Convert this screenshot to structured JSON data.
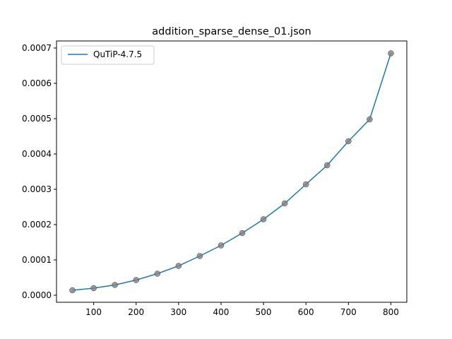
{
  "chart_data": {
    "type": "line",
    "title": "addition_sparse_dense_01.json",
    "xlabel": "",
    "ylabel": "",
    "x": [
      50,
      100,
      150,
      200,
      250,
      300,
      350,
      400,
      450,
      500,
      550,
      600,
      650,
      700,
      750,
      800
    ],
    "series": [
      {
        "name": "QuTiP-4.7.5",
        "color": "#1f77b4",
        "marker_color": "#808080",
        "values": [
          1.4e-05,
          2e-05,
          2.9e-05,
          4.3e-05,
          6.1e-05,
          8.3e-05,
          0.000111,
          0.000141,
          0.000176,
          0.000215,
          0.00026,
          0.000314,
          0.000368,
          0.000436,
          0.000498,
          0.000685
        ]
      }
    ],
    "xlim": [
      12.5,
      837.5
    ],
    "ylim": [
      -2e-05,
      0.00072
    ],
    "xticks": [
      100,
      200,
      300,
      400,
      500,
      600,
      700,
      800
    ],
    "xtick_labels": [
      "100",
      "200",
      "300",
      "400",
      "500",
      "600",
      "700",
      "800"
    ],
    "yticks": [
      0.0,
      0.0001,
      0.0002,
      0.0003,
      0.0004,
      0.0005,
      0.0006,
      0.0007
    ],
    "ytick_labels": [
      "0.0000",
      "0.0001",
      "0.0002",
      "0.0003",
      "0.0004",
      "0.0005",
      "0.0006",
      "0.0007"
    ],
    "grid": false,
    "legend_position": "top-left"
  }
}
